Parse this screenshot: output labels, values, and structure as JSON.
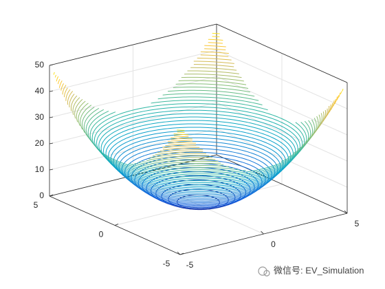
{
  "chart_data": {
    "type": "contour3",
    "levels": [
      1,
      2,
      3,
      4,
      5,
      6,
      7,
      8,
      9,
      10,
      11,
      12,
      13,
      14,
      15,
      16,
      17,
      18,
      19,
      20,
      21,
      22,
      23,
      24,
      25,
      26,
      27,
      28,
      29,
      30,
      31,
      32,
      33,
      34,
      35,
      36,
      37,
      38,
      39,
      40,
      41,
      42,
      43,
      44,
      45,
      46,
      47,
      48,
      49,
      50
    ],
    "colormap": [
      "#352a87",
      "#0f5cdd",
      "#1481d6",
      "#06a4ca",
      "#2eb7a4",
      "#87bf77",
      "#d1bb59",
      "#fec832",
      "#f9fb0e"
    ],
    "xlim": [
      -5,
      5
    ],
    "xticks": [
      -5,
      0,
      5
    ],
    "ylim": [
      -5,
      5
    ],
    "yticks": [
      -5,
      0,
      5
    ],
    "zlim": [
      0,
      50
    ],
    "zticks": [
      0,
      10,
      20,
      30,
      40,
      50
    ],
    "grid": true,
    "watermark": "微信号: EV_Simulation"
  }
}
